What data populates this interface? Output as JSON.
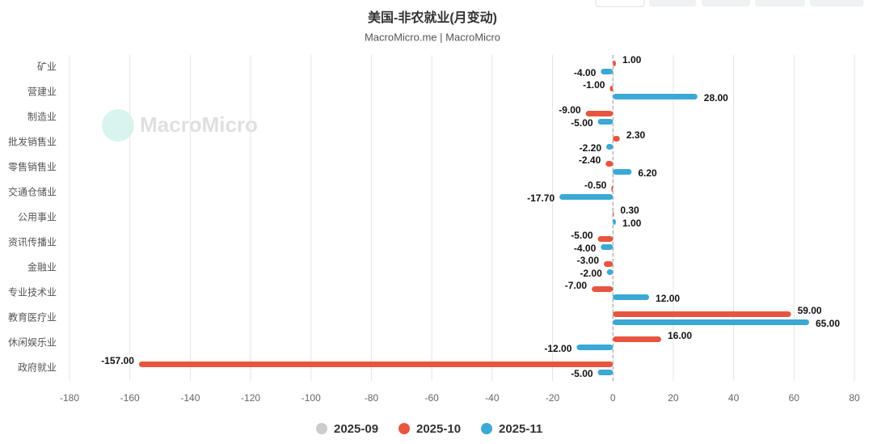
{
  "chart_data": {
    "type": "hbar",
    "title": "美国-非农就业(月变动)",
    "subtitle": "MacroMicro.me | MacroMicro",
    "watermark": "MacroMicro",
    "categories": [
      "矿业",
      "营建业",
      "制造业",
      "批发销售业",
      "零售销售业",
      "交通仓储业",
      "公用事业",
      "资讯传播业",
      "金融业",
      "专业技术业",
      "教育医疗业",
      "休闲娱乐业",
      "政府就业"
    ],
    "series": [
      {
        "name": "2025-09",
        "color": "#cccccc",
        "visible": false,
        "values": [
          null,
          null,
          null,
          null,
          null,
          null,
          null,
          null,
          null,
          null,
          null,
          null,
          null
        ]
      },
      {
        "name": "2025-10",
        "color": "#e8553e",
        "visible": true,
        "values": [
          1,
          -1,
          -9,
          2.3,
          -2.4,
          -0.5,
          0.3,
          -5,
          -3,
          -7,
          59,
          16,
          -157
        ],
        "value_labels": [
          "1.00",
          "-1.00",
          "-9.00",
          "2.30",
          "-2.40",
          "-0.50",
          "0.30",
          "-5.00",
          "-3.00",
          "-7.00",
          "59.00",
          "16.00",
          "-157.00"
        ]
      },
      {
        "name": "2025-11",
        "color": "#3ba9d6",
        "visible": true,
        "values": [
          -4,
          28,
          -5,
          -2.2,
          6.2,
          -17.7,
          1,
          -4,
          -2,
          12,
          65,
          -12,
          -5
        ],
        "value_labels": [
          "-4.00",
          "28.00",
          "-5.00",
          "-2.20",
          "6.20",
          "-17.70",
          "1.00",
          "-4.00",
          "-2.00",
          "12.00",
          "65.00",
          "-12.00",
          "-5.00"
        ]
      }
    ],
    "xlim": [
      -180,
      80
    ],
    "xticks": [
      -180,
      -160,
      -140,
      -120,
      -100,
      -80,
      -60,
      -40,
      -20,
      0,
      20,
      40,
      60,
      80
    ],
    "grid": true
  }
}
